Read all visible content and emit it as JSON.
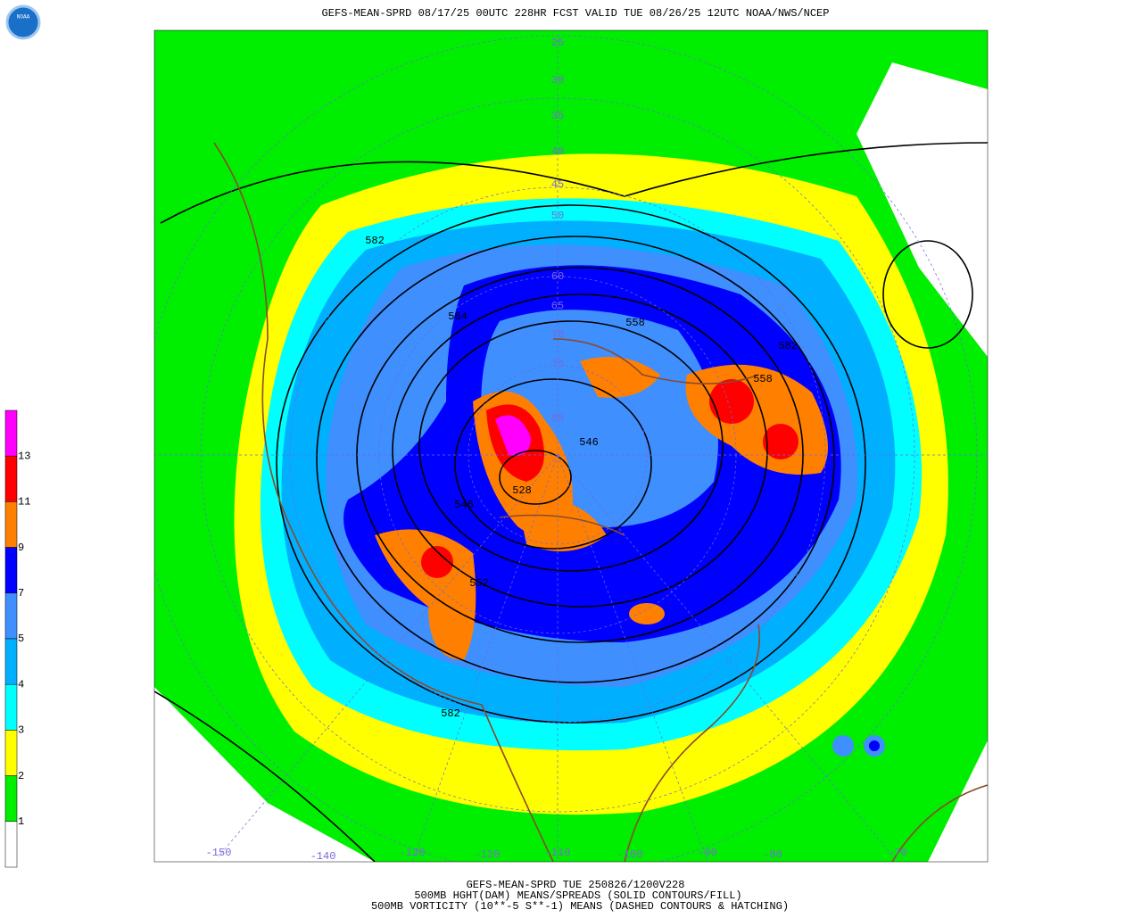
{
  "header": {
    "title": "GEFS-MEAN-SPRD 08/17/25 00UTC 228HR FCST VALID TUE 08/26/25 12UTC NOAA/NWS/NCEP",
    "logo": "NOAA"
  },
  "legend": {
    "colors": [
      "#ff00ff",
      "#ff0000",
      "#ff8000",
      "#0000ff",
      "#3f8fff",
      "#00b0ff",
      "#00ffff",
      "#ffff00",
      "#00ee00",
      "#ffffff"
    ],
    "labels": [
      "13",
      "11",
      "9",
      "7",
      "5",
      "4",
      "3",
      "2",
      "1"
    ]
  },
  "map": {
    "latitude_labels": [
      "25",
      "30",
      "35",
      "40",
      "45",
      "50",
      "60",
      "65",
      "70",
      "75",
      "85"
    ],
    "longitude_labels": [
      "-150",
      "-140",
      "-130",
      "-120",
      "-110",
      "-100",
      "-90",
      "-80",
      "-70"
    ],
    "contour_labels": [
      "582",
      "564",
      "546",
      "528",
      "546",
      "552",
      "582",
      "582",
      "558",
      "558"
    ]
  },
  "footer": {
    "lines": [
      "GEFS-MEAN-SPRD TUE 250826/1200V228",
      "500MB HGHT(DAM) MEANS/SPREADS (SOLID CONTOURS/FILL)",
      "500MB VORTICITY (10**-5 S**-1) MEANS (DASHED CONTOURS & HATCHING)"
    ]
  }
}
